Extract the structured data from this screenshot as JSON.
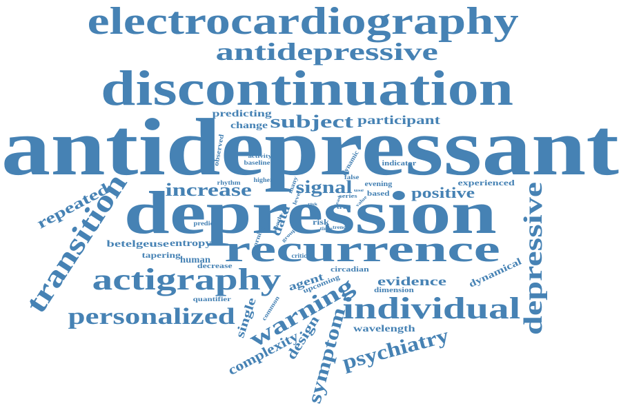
{
  "color": "#4682b4",
  "words": [
    {
      "text": "antidepressant"
    },
    {
      "text": "depression"
    },
    {
      "text": "discontinuation"
    },
    {
      "text": "electrocardiography"
    },
    {
      "text": "recurrence"
    },
    {
      "text": "antidepressive"
    },
    {
      "text": "actigraphy"
    },
    {
      "text": "transition"
    },
    {
      "text": "individual"
    },
    {
      "text": "depressive"
    },
    {
      "text": "personalized"
    },
    {
      "text": "warning"
    },
    {
      "text": "psychiatry"
    },
    {
      "text": "symptom"
    },
    {
      "text": "subject"
    },
    {
      "text": "increase"
    },
    {
      "text": "signal"
    },
    {
      "text": "positive"
    },
    {
      "text": "repeated"
    },
    {
      "text": "participant"
    },
    {
      "text": "evidence"
    },
    {
      "text": "complexity"
    },
    {
      "text": "design"
    },
    {
      "text": "single"
    },
    {
      "text": "wavelength"
    },
    {
      "text": "human"
    },
    {
      "text": "entropy"
    },
    {
      "text": "betelgeuse"
    },
    {
      "text": "tapering"
    },
    {
      "text": "agent"
    },
    {
      "text": "predicting"
    },
    {
      "text": "change"
    },
    {
      "text": "dynamical"
    },
    {
      "text": "data"
    },
    {
      "text": "risk"
    },
    {
      "text": "experienced"
    },
    {
      "text": "circadian"
    },
    {
      "text": "dimension"
    },
    {
      "text": "observed"
    },
    {
      "text": "decrease"
    },
    {
      "text": "upcoming"
    },
    {
      "text": "dynamic"
    },
    {
      "text": "indicator"
    },
    {
      "text": "evening"
    },
    {
      "text": "based"
    },
    {
      "text": "quantifier"
    },
    {
      "text": "morning"
    },
    {
      "text": "baseline"
    },
    {
      "text": "activity"
    },
    {
      "text": "rhythm"
    },
    {
      "text": "higher"
    },
    {
      "text": "common"
    },
    {
      "text": "predict"
    },
    {
      "text": "critical"
    },
    {
      "text": "false"
    },
    {
      "text": "series"
    },
    {
      "text": "month"
    },
    {
      "text": "level"
    },
    {
      "text": "time"
    },
    {
      "text": "true"
    },
    {
      "text": "trend"
    },
    {
      "text": "group"
    },
    {
      "text": "value"
    },
    {
      "text": "lead"
    },
    {
      "text": "many"
    },
    {
      "text": "risk"
    },
    {
      "text": "use"
    }
  ]
}
